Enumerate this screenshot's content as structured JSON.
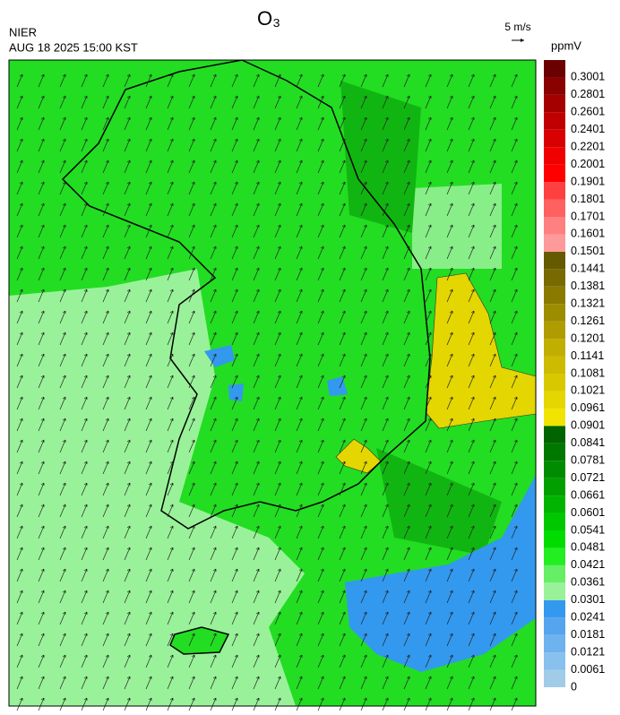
{
  "header": {
    "title": "O₃",
    "source": "NIER",
    "timestamp": "AUG 18 2025 15:00 KST"
  },
  "wind_scale": {
    "label": "5 m/s"
  },
  "colorbar": {
    "unit": "ppmV",
    "levels": [
      0,
      0.0061,
      0.0121,
      0.0181,
      0.0241,
      0.0301,
      0.0361,
      0.0421,
      0.0481,
      0.0541,
      0.0601,
      0.0661,
      0.0721,
      0.0781,
      0.0841,
      0.0901,
      0.0961,
      0.1021,
      0.1081,
      0.1141,
      0.1201,
      0.1261,
      0.1321,
      0.1381,
      0.1441,
      0.1501,
      0.1601,
      0.1701,
      0.1801,
      0.1901,
      0.2001,
      0.2201,
      0.2401,
      0.2601,
      0.2801,
      0.3001
    ],
    "colors": [
      "#a0cce8",
      "#88c0ee",
      "#6eb2ee",
      "#55a5ee",
      "#3399ee",
      "#99f299",
      "#66ee66",
      "#22ee22",
      "#00dc00",
      "#00c800",
      "#00b400",
      "#00a000",
      "#008c00",
      "#007800",
      "#006400",
      "#f0e400",
      "#e4d600",
      "#d8c800",
      "#ccbb00",
      "#c0ae00",
      "#ae9c00",
      "#9c8c00",
      "#8a7a00",
      "#786a00",
      "#665a00",
      "#ff9a9a",
      "#ff8080",
      "#ff6060",
      "#ff4040",
      "#ff0000",
      "#f00000",
      "#d80000",
      "#c00000",
      "#a50000",
      "#8b0000",
      "#6b0000"
    ]
  }
}
